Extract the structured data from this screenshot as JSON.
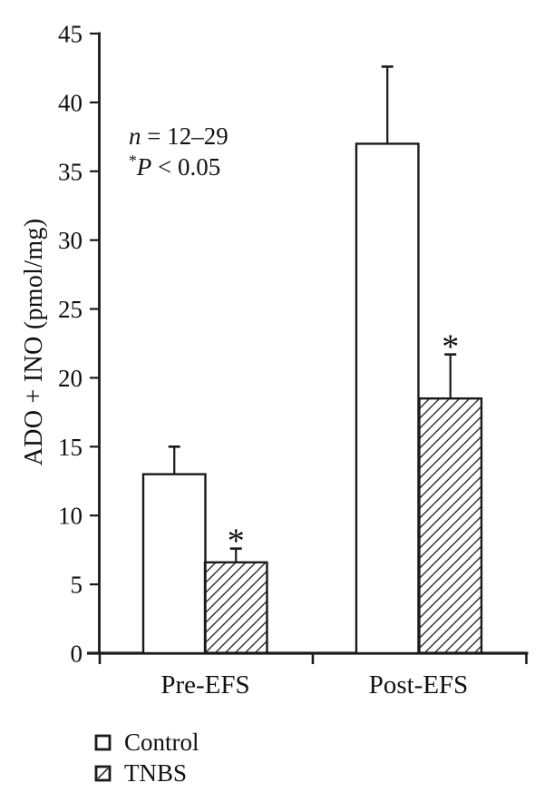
{
  "figure": {
    "background": "#ffffff",
    "ink_color": "#1a1a1a",
    "y_axis_label": "ADO + INO (pmol/mg)",
    "annotation": {
      "sample_size_var": "n",
      "sample_size_rest": " = 12–29",
      "sig_star": "*",
      "sig_var": "P",
      "sig_rest": " < 0.05"
    },
    "legend": [
      {
        "label": "Control",
        "swatch": "open-square"
      },
      {
        "label": "TNBS",
        "swatch": "hatched-square"
      }
    ]
  },
  "chart_data": {
    "type": "bar",
    "title": "",
    "xlabel": "",
    "ylabel": "ADO + INO (pmol/mg)",
    "categories": [
      "Pre-EFS",
      "Post-EFS"
    ],
    "series": [
      {
        "name": "Control",
        "fill": "open",
        "values": [
          13.0,
          37.0
        ],
        "errors_plus": [
          2.0,
          5.6
        ],
        "significant": [
          false,
          false
        ]
      },
      {
        "name": "TNBS",
        "fill": "hatched",
        "values": [
          6.6,
          18.5
        ],
        "errors_plus": [
          1.0,
          3.2
        ],
        "significant": [
          true,
          true
        ]
      }
    ],
    "ylim": [
      0,
      45
    ],
    "yticks": [
      0,
      5,
      10,
      15,
      20,
      25,
      30,
      35,
      40,
      45
    ],
    "grid": false,
    "error_bars": "upper-only",
    "significance_marker": "*",
    "legend_position": "bottom-left",
    "annotations": [
      "n = 12–29",
      "*P < 0.05"
    ]
  }
}
